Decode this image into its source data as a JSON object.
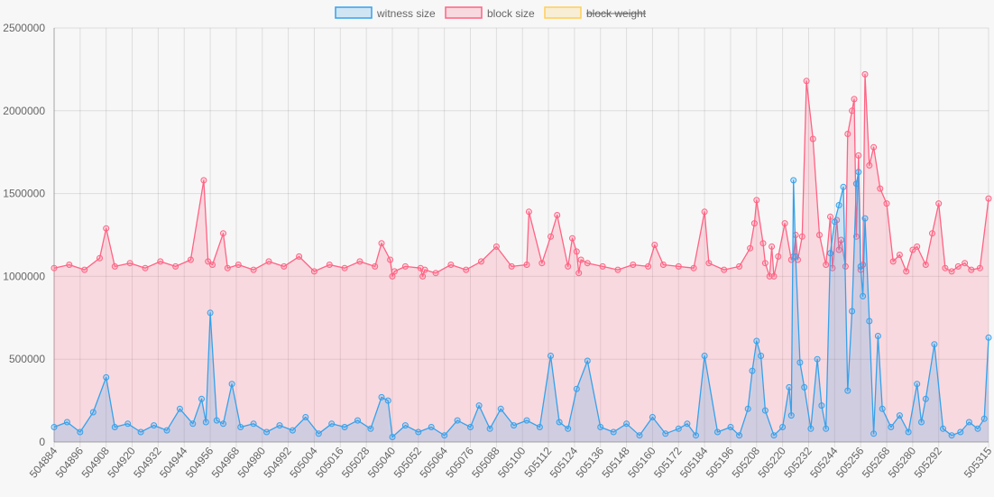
{
  "chart_data": {
    "type": "line",
    "legend": [
      {
        "label": "witness size",
        "hidden": false,
        "stroke": "#36a2eb",
        "fill": "rgba(54,162,235,0.2)"
      },
      {
        "label": "block size",
        "hidden": false,
        "stroke": "#ff6384",
        "fill": "rgba(255,99,132,0.2)"
      },
      {
        "label": "block weight",
        "hidden": true,
        "stroke": "#ffce56",
        "fill": "rgba(255,206,86,0.2)"
      }
    ],
    "legend_position": "top",
    "ylim": [
      0,
      2500000
    ],
    "y_ticks": [
      "0",
      "500000",
      "1000000",
      "1500000",
      "2000000",
      "2500000"
    ],
    "y_tick_values": [
      0,
      500000,
      1000000,
      1500000,
      2000000,
      2500000
    ],
    "x_start": 504884,
    "x_end": 505315,
    "x_tick_labels": [
      "504884",
      "504896",
      "504908",
      "504920",
      "504932",
      "504944",
      "504956",
      "504968",
      "504980",
      "504992",
      "505004",
      "505016",
      "505028",
      "505040",
      "505052",
      "505064",
      "505076",
      "505088",
      "505100",
      "505112",
      "505124",
      "505136",
      "505148",
      "505160",
      "505172",
      "505184",
      "505196",
      "505208",
      "505220",
      "505232",
      "505244",
      "505256",
      "505268",
      "505280",
      "505292",
      "505315"
    ],
    "grid": true,
    "series": [
      {
        "name": "block size",
        "x": [
          504884,
          504891,
          504898,
          504905,
          504908,
          504912,
          504919,
          504926,
          504933,
          504940,
          504947,
          504953,
          504955,
          504957,
          504962,
          504964,
          504969,
          504976,
          504983,
          504990,
          504997,
          505004,
          505011,
          505018,
          505025,
          505032,
          505035,
          505039,
          505040,
          505041,
          505046,
          505053,
          505054,
          505055,
          505060,
          505067,
          505074,
          505081,
          505088,
          505095,
          505102,
          505103,
          505109,
          505113,
          505116,
          505121,
          505123,
          505125,
          505126,
          505127,
          505130,
          505137,
          505144,
          505151,
          505158,
          505161,
          505165,
          505172,
          505179,
          505184,
          505186,
          505193,
          505200,
          505205,
          505207,
          505208,
          505211,
          505212,
          505214,
          505215,
          505216,
          505218,
          505221,
          505224,
          505225,
          505226,
          505227,
          505229,
          505231,
          505234,
          505237,
          505240,
          505242,
          505243,
          505245,
          505246,
          505247,
          505249,
          505250,
          505252,
          505253,
          505254,
          505255,
          505256,
          505257,
          505258,
          505260,
          505262,
          505265,
          505268,
          505271,
          505274,
          505277,
          505280,
          505282,
          505286,
          505289,
          505292,
          505295,
          505298,
          505301,
          505304,
          505307,
          505311,
          505315
        ],
        "values": [
          1050000,
          1070000,
          1040000,
          1110000,
          1290000,
          1060000,
          1080000,
          1050000,
          1090000,
          1060000,
          1100000,
          1580000,
          1090000,
          1070000,
          1260000,
          1050000,
          1070000,
          1040000,
          1090000,
          1060000,
          1120000,
          1030000,
          1070000,
          1050000,
          1090000,
          1060000,
          1200000,
          1100000,
          1000000,
          1030000,
          1060000,
          1050000,
          1000000,
          1040000,
          1020000,
          1070000,
          1040000,
          1090000,
          1180000,
          1060000,
          1070000,
          1390000,
          1080000,
          1240000,
          1370000,
          1060000,
          1230000,
          1150000,
          1020000,
          1100000,
          1080000,
          1060000,
          1040000,
          1070000,
          1060000,
          1190000,
          1070000,
          1060000,
          1050000,
          1390000,
          1080000,
          1040000,
          1060000,
          1170000,
          1320000,
          1460000,
          1200000,
          1080000,
          1000000,
          1180000,
          1000000,
          1120000,
          1320000,
          1100000,
          1120000,
          1250000,
          1100000,
          1240000,
          2180000,
          1830000,
          1250000,
          1070000,
          1360000,
          1050000,
          1340000,
          1160000,
          1220000,
          1060000,
          1860000,
          2000000,
          2070000,
          1240000,
          1730000,
          1040000,
          1070000,
          2220000,
          1670000,
          1780000,
          1530000,
          1440000,
          1090000,
          1130000,
          1030000,
          1160000,
          1180000,
          1070000,
          1260000,
          1440000,
          1050000,
          1030000,
          1060000,
          1080000,
          1040000,
          1050000,
          1470000
        ]
      },
      {
        "name": "witness size",
        "x": [
          504884,
          504890,
          504896,
          504902,
          504908,
          504912,
          504918,
          504924,
          504930,
          504936,
          504942,
          504948,
          504952,
          504954,
          504956,
          504959,
          504962,
          504966,
          504970,
          504976,
          504982,
          504988,
          504994,
          505000,
          505006,
          505012,
          505018,
          505024,
          505030,
          505035,
          505038,
          505040,
          505046,
          505052,
          505058,
          505064,
          505070,
          505076,
          505080,
          505085,
          505090,
          505096,
          505102,
          505108,
          505113,
          505117,
          505121,
          505125,
          505130,
          505136,
          505142,
          505148,
          505154,
          505160,
          505166,
          505172,
          505176,
          505180,
          505184,
          505190,
          505196,
          505200,
          505204,
          505206,
          505208,
          505210,
          505212,
          505216,
          505220,
          505223,
          505224,
          505225,
          505226,
          505228,
          505230,
          505233,
          505236,
          505238,
          505240,
          505242,
          505244,
          505246,
          505248,
          505250,
          505252,
          505254,
          505255,
          505256,
          505257,
          505258,
          505260,
          505262,
          505264,
          505266,
          505270,
          505274,
          505278,
          505282,
          505284,
          505286,
          505290,
          505294,
          505298,
          505302,
          505306,
          505310,
          505313,
          505315
        ],
        "values": [
          90000,
          120000,
          60000,
          180000,
          390000,
          90000,
          110000,
          60000,
          100000,
          70000,
          200000,
          110000,
          260000,
          120000,
          780000,
          130000,
          110000,
          350000,
          90000,
          110000,
          60000,
          100000,
          70000,
          150000,
          50000,
          110000,
          90000,
          130000,
          80000,
          270000,
          250000,
          30000,
          100000,
          60000,
          90000,
          40000,
          130000,
          90000,
          220000,
          80000,
          200000,
          100000,
          130000,
          90000,
          520000,
          120000,
          80000,
          320000,
          490000,
          90000,
          60000,
          110000,
          40000,
          150000,
          50000,
          80000,
          110000,
          40000,
          520000,
          60000,
          90000,
          40000,
          200000,
          430000,
          610000,
          520000,
          190000,
          40000,
          90000,
          330000,
          160000,
          1580000,
          1120000,
          480000,
          330000,
          80000,
          500000,
          220000,
          80000,
          1140000,
          1330000,
          1430000,
          1540000,
          310000,
          790000,
          1560000,
          1630000,
          1060000,
          880000,
          1350000,
          730000,
          50000,
          640000,
          200000,
          90000,
          160000,
          60000,
          350000,
          120000,
          260000,
          590000,
          80000,
          40000,
          60000,
          120000,
          80000,
          140000,
          630000
        ]
      }
    ]
  }
}
